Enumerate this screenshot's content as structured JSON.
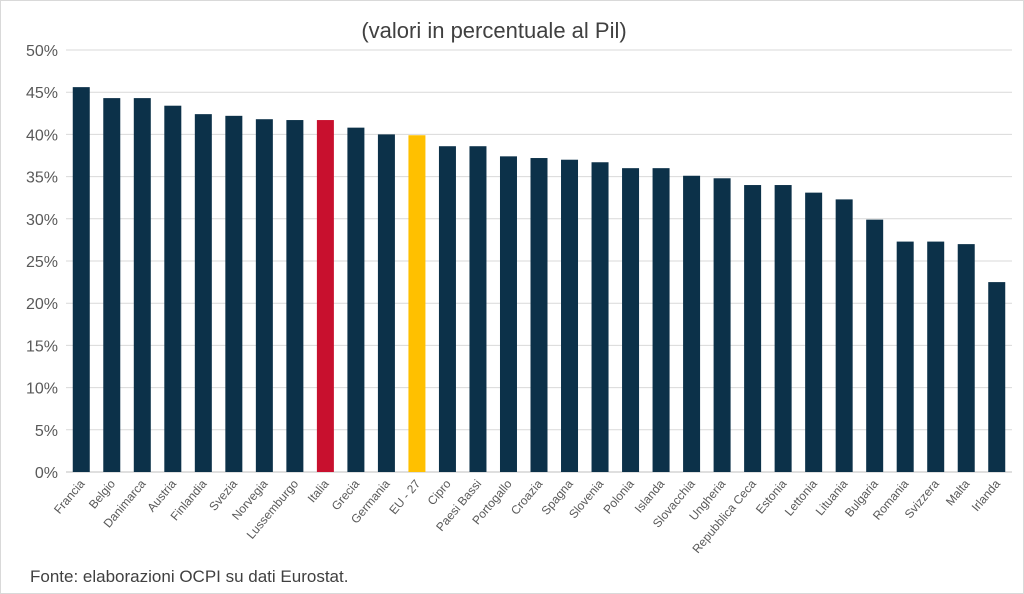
{
  "chart_data": {
    "type": "bar",
    "title": "(valori in percentuale al Pil)",
    "source": "Fonte: elaborazioni OCPI su dati Eurostat.",
    "xlabel": "",
    "ylabel": "",
    "ylim": [
      0,
      50
    ],
    "yticks": [
      "0%",
      "5%",
      "10%",
      "15%",
      "20%",
      "25%",
      "30%",
      "35%",
      "40%",
      "45%",
      "50%"
    ],
    "grid": true,
    "categories": [
      "Francia",
      "Belgio",
      "Danimarca",
      "Austria",
      "Finlandia",
      "Svezia",
      "Norvegia",
      "Lussemburgo",
      "Italia",
      "Grecia",
      "Germania",
      "EU - 27",
      "Cipro",
      "Paesi Bassi",
      "Portogallo",
      "Croazia",
      "Spagna",
      "Slovenia",
      "Polonia",
      "Islanda",
      "Slovacchia",
      "Ungheria",
      "Repubblica Ceca",
      "Estonia",
      "Lettonia",
      "Lituania",
      "Bulgaria",
      "Romania",
      "Svizzera",
      "Malta",
      "Irlanda"
    ],
    "values": [
      45.6,
      44.3,
      44.3,
      43.4,
      42.4,
      42.2,
      41.8,
      41.7,
      41.7,
      40.8,
      40.0,
      39.9,
      38.6,
      38.6,
      37.4,
      37.2,
      37.0,
      36.7,
      36.0,
      36.0,
      35.1,
      34.8,
      34.0,
      34.0,
      33.1,
      32.3,
      29.9,
      27.3,
      27.3,
      27.0,
      22.5
    ],
    "colors": {
      "default": "#0c3149",
      "Italia": "#c8102e",
      "EU - 27": "#ffc000"
    }
  }
}
